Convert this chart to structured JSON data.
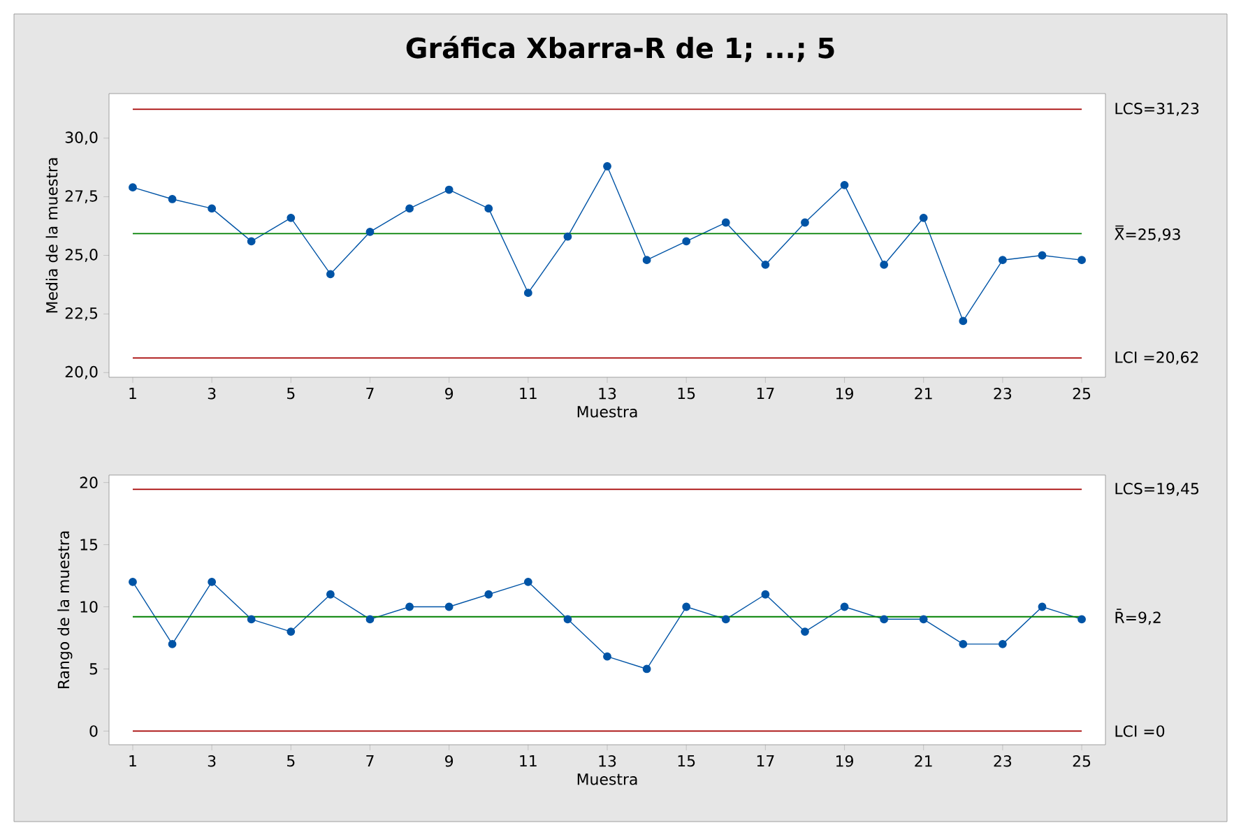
{
  "chart_data": [
    {
      "type": "line",
      "title": "Gráfica Xbarra-R de 1; ...; 5",
      "xlabel": "Muestra",
      "ylabel": "Media de la muestra",
      "x": [
        1,
        2,
        3,
        4,
        5,
        6,
        7,
        8,
        9,
        10,
        11,
        12,
        13,
        14,
        15,
        16,
        17,
        18,
        19,
        20,
        21,
        22,
        23,
        24,
        25
      ],
      "values": [
        27.9,
        27.4,
        27.0,
        25.6,
        26.6,
        24.2,
        26.0,
        27.0,
        27.8,
        27.0,
        23.4,
        25.8,
        28.8,
        24.8,
        25.6,
        26.4,
        24.6,
        26.4,
        28.0,
        24.6,
        26.6,
        22.2,
        24.8,
        25.0,
        24.8
      ],
      "color": "#0054a6",
      "marker": "circle",
      "line_style": "solid",
      "grid": false,
      "xlim": [
        0.4,
        25.6
      ],
      "xticks": [
        1,
        3,
        5,
        7,
        9,
        11,
        13,
        15,
        17,
        19,
        21,
        23,
        25
      ],
      "ylim": [
        19.8,
        31.9
      ],
      "yticks": [
        {
          "value": 20,
          "label": "20,0"
        },
        {
          "value": 22.5,
          "label": "22,5"
        },
        {
          "value": 25,
          "label": "25,0"
        },
        {
          "value": 27.5,
          "label": "27,5"
        },
        {
          "value": 30,
          "label": "30,0"
        }
      ],
      "ref_lines": [
        {
          "axis": "y",
          "value": 31.23,
          "label": "LCS=31,23",
          "color": "#a50000"
        },
        {
          "axis": "y",
          "value": 25.93,
          "label": "X̿=25,93",
          "color": "#008000"
        },
        {
          "axis": "y",
          "value": 20.62,
          "label": "LCI =20,62",
          "color": "#a50000"
        }
      ]
    },
    {
      "type": "line",
      "xlabel": "Muestra",
      "ylabel": "Rango de la muestra",
      "x": [
        1,
        2,
        3,
        4,
        5,
        6,
        7,
        8,
        9,
        10,
        11,
        12,
        13,
        14,
        15,
        16,
        17,
        18,
        19,
        20,
        21,
        22,
        23,
        24,
        25
      ],
      "values": [
        12,
        7,
        12,
        9,
        8,
        11,
        9,
        10,
        10,
        11,
        12,
        9,
        6,
        5,
        10,
        9,
        11,
        8,
        10,
        9,
        9,
        7,
        7,
        10,
        9
      ],
      "color": "#0054a6",
      "marker": "circle",
      "line_style": "solid",
      "grid": false,
      "xlim": [
        0.4,
        25.6
      ],
      "xticks": [
        1,
        3,
        5,
        7,
        9,
        11,
        13,
        15,
        17,
        19,
        21,
        23,
        25
      ],
      "ylim": [
        -1.1,
        20.6
      ],
      "yticks": [
        0,
        5,
        10,
        15,
        20
      ],
      "ref_lines": [
        {
          "axis": "y",
          "value": 19.45,
          "label": "LCS=19,45",
          "color": "#a50000"
        },
        {
          "axis": "y",
          "value": 9.2,
          "label": "R̄=9,2",
          "color": "#008000"
        },
        {
          "axis": "y",
          "value": 0,
          "label": "LCI =0",
          "color": "#a50000"
        }
      ]
    }
  ]
}
